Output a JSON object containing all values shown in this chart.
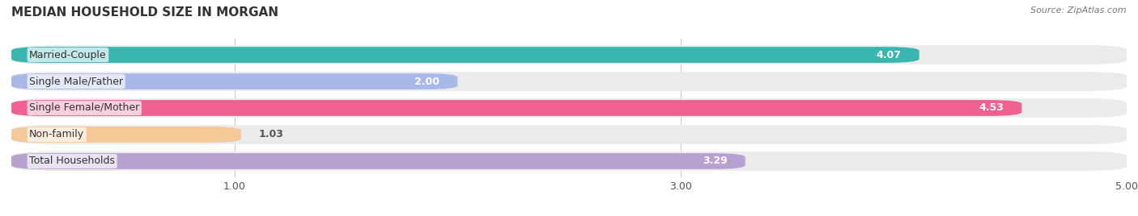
{
  "title": "MEDIAN HOUSEHOLD SIZE IN MORGAN",
  "source": "Source: ZipAtlas.com",
  "categories": [
    "Married-Couple",
    "Single Male/Father",
    "Single Female/Mother",
    "Non-family",
    "Total Households"
  ],
  "values": [
    4.07,
    2.0,
    4.53,
    1.03,
    3.29
  ],
  "bar_colors": [
    "#3ab5b0",
    "#a8b8e8",
    "#f06090",
    "#f5c897",
    "#b8a0d0"
  ],
  "bar_bg_color": "#f0f0f0",
  "xlim": [
    0,
    5.0
  ],
  "xticks": [
    1.0,
    3.0,
    5.0
  ],
  "label_fontsize": 9,
  "title_fontsize": 11,
  "value_color_inside": "#ffffff",
  "value_color_outside": "#555555",
  "background_color": "#ffffff"
}
